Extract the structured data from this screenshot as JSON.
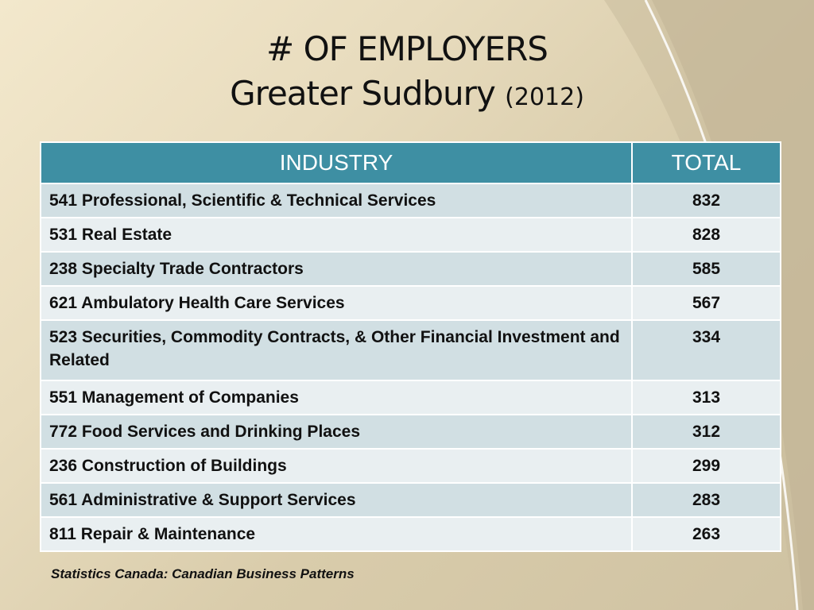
{
  "slide": {
    "title_line1": "# OF EMPLOYERS",
    "title_line2": "Greater Sudbury",
    "title_year": "(2012)",
    "source": "Statistics Canada: Canadian Business Patterns"
  },
  "table": {
    "headers": [
      "INDUSTRY",
      "TOTAL"
    ],
    "rows": [
      {
        "industry": "541 Professional, Scientific & Technical Services",
        "total": "832"
      },
      {
        "industry": "531 Real Estate",
        "total": "828"
      },
      {
        "industry": "238 Specialty Trade Contractors",
        "total": "585"
      },
      {
        "industry": "621 Ambulatory Health Care Services",
        "total": "567"
      },
      {
        "industry": "523 Securities, Commodity Contracts, & Other Financial Investment and Related",
        "total": "334"
      },
      {
        "industry": "551 Management of Companies",
        "total": "313"
      },
      {
        "industry": "772 Food Services and Drinking Places",
        "total": "312"
      },
      {
        "industry": "236 Construction of Buildings",
        "total": "299"
      },
      {
        "industry": "561 Administrative & Support Services",
        "total": "283"
      },
      {
        "industry": "811 Repair & Maintenance",
        "total": "263"
      }
    ]
  },
  "colors": {
    "header_bg": "#3e8fa3",
    "row_odd": "#d1dfe3",
    "row_even": "#e9eff1",
    "background": "#e8dcbe"
  }
}
